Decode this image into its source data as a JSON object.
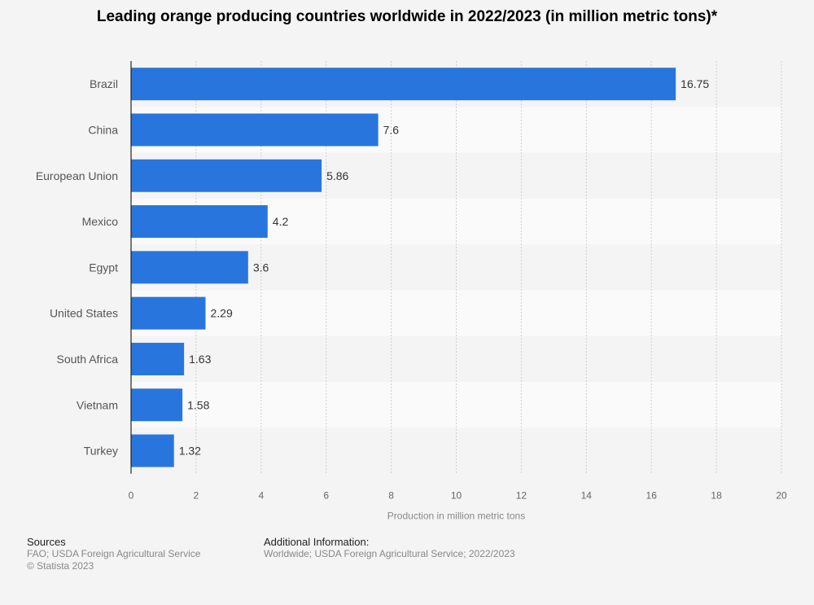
{
  "title": "Leading orange producing countries worldwide in 2022/2023 (in million metric tons)*",
  "chart_data": {
    "type": "bar",
    "orientation": "horizontal",
    "title": "Leading orange producing countries worldwide in 2022/2023 (in million metric tons)*",
    "xlabel": "Production in million metric tons",
    "ylabel": "",
    "categories": [
      "Brazil",
      "China",
      "European Union",
      "Mexico",
      "Egypt",
      "United States",
      "South Africa",
      "Vietnam",
      "Turkey"
    ],
    "values": [
      16.75,
      7.6,
      5.86,
      4.2,
      3.6,
      2.29,
      1.63,
      1.58,
      1.32
    ],
    "value_labels": [
      "16.75",
      "7.6",
      "5.86",
      "4.2",
      "3.6",
      "2.29",
      "1.63",
      "1.58",
      "1.32"
    ],
    "xlim": [
      0,
      20
    ],
    "xticks": [
      0,
      2,
      4,
      6,
      8,
      10,
      12,
      14,
      16,
      18,
      20
    ],
    "grid": "vertical dashed",
    "legend": "none",
    "bar_color": "#2876dd"
  },
  "footer": {
    "sources_heading": "Sources",
    "sources_line1": "FAO; USDA Foreign Agricultural Service",
    "sources_line2": "© Statista 2023",
    "additional_heading": "Additional Information:",
    "additional_line1": "Worldwide; USDA Foreign Agricultural Service; 2022/2023"
  }
}
